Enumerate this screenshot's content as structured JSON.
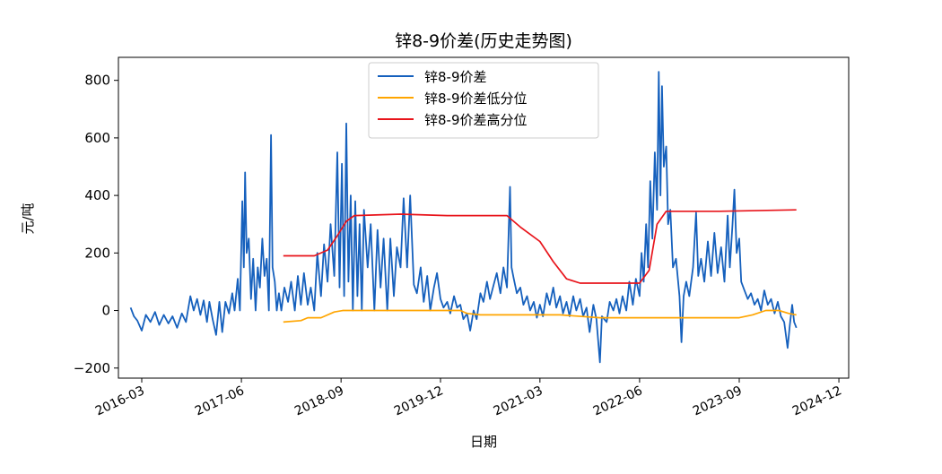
{
  "chart_data": {
    "type": "line",
    "title": "锌8-9价差(历史走势图)",
    "xlabel": "日期",
    "ylabel": "元/吨",
    "ylim": [
      -235,
      880
    ],
    "xlim": [
      "2015-11-15",
      "2025-01-15"
    ],
    "y_ticks": [
      -200,
      0,
      200,
      400,
      600,
      800
    ],
    "x_ticks": [
      "2016-03",
      "2017-06",
      "2018-09",
      "2019-12",
      "2021-03",
      "2022-06",
      "2023-09",
      "2024-12"
    ],
    "legend_position": "upper-center",
    "grid": false,
    "series": [
      {
        "name": "锌8-9价差",
        "color": "#1560BD",
        "points": [
          [
            "2016-01-10",
            10
          ],
          [
            "2016-01-25",
            -20
          ],
          [
            "2016-02-10",
            -35
          ],
          [
            "2016-03-01",
            -70
          ],
          [
            "2016-03-20",
            -15
          ],
          [
            "2016-04-10",
            -40
          ],
          [
            "2016-05-01",
            -5
          ],
          [
            "2016-05-20",
            -50
          ],
          [
            "2016-06-10",
            -15
          ],
          [
            "2016-07-01",
            -45
          ],
          [
            "2016-07-20",
            -20
          ],
          [
            "2016-08-10",
            -60
          ],
          [
            "2016-09-01",
            -10
          ],
          [
            "2016-09-20",
            -40
          ],
          [
            "2016-10-10",
            50
          ],
          [
            "2016-10-25",
            0
          ],
          [
            "2016-11-10",
            40
          ],
          [
            "2016-11-25",
            -15
          ],
          [
            "2016-12-10",
            35
          ],
          [
            "2016-12-25",
            -40
          ],
          [
            "2017-01-05",
            30
          ],
          [
            "2017-01-20",
            -30
          ],
          [
            "2017-02-05",
            -85
          ],
          [
            "2017-02-20",
            30
          ],
          [
            "2017-03-05",
            -75
          ],
          [
            "2017-03-20",
            30
          ],
          [
            "2017-04-05",
            -10
          ],
          [
            "2017-04-20",
            60
          ],
          [
            "2017-05-01",
            0
          ],
          [
            "2017-05-15",
            110
          ],
          [
            "2017-05-25",
            0
          ],
          [
            "2017-06-05",
            380
          ],
          [
            "2017-06-12",
            150
          ],
          [
            "2017-06-18",
            480
          ],
          [
            "2017-06-25",
            200
          ],
          [
            "2017-07-05",
            250
          ],
          [
            "2017-07-15",
            40
          ],
          [
            "2017-07-25",
            180
          ],
          [
            "2017-08-05",
            0
          ],
          [
            "2017-08-15",
            150
          ],
          [
            "2017-08-25",
            80
          ],
          [
            "2017-09-05",
            250
          ],
          [
            "2017-09-15",
            120
          ],
          [
            "2017-09-25",
            180
          ],
          [
            "2017-10-05",
            0
          ],
          [
            "2017-10-15",
            610
          ],
          [
            "2017-10-22",
            150
          ],
          [
            "2017-11-01",
            100
          ],
          [
            "2017-11-10",
            0
          ],
          [
            "2017-11-20",
            60
          ],
          [
            "2017-12-01",
            0
          ],
          [
            "2017-12-15",
            80
          ],
          [
            "2018-01-01",
            30
          ],
          [
            "2018-01-15",
            100
          ],
          [
            "2018-02-01",
            0
          ],
          [
            "2018-02-15",
            120
          ],
          [
            "2018-03-01",
            20
          ],
          [
            "2018-03-15",
            130
          ],
          [
            "2018-04-01",
            20
          ],
          [
            "2018-04-15",
            80
          ],
          [
            "2018-05-01",
            0
          ],
          [
            "2018-05-15",
            200
          ],
          [
            "2018-06-01",
            50
          ],
          [
            "2018-06-15",
            230
          ],
          [
            "2018-07-01",
            100
          ],
          [
            "2018-07-15",
            300
          ],
          [
            "2018-08-01",
            120
          ],
          [
            "2018-08-15",
            550
          ],
          [
            "2018-08-25",
            80
          ],
          [
            "2018-09-05",
            510
          ],
          [
            "2018-09-15",
            50
          ],
          [
            "2018-09-25",
            650
          ],
          [
            "2018-10-05",
            100
          ],
          [
            "2018-10-15",
            400
          ],
          [
            "2018-10-25",
            0
          ],
          [
            "2018-11-05",
            380
          ],
          [
            "2018-11-15",
            50
          ],
          [
            "2018-11-25",
            300
          ],
          [
            "2018-12-05",
            0
          ],
          [
            "2018-12-15",
            350
          ],
          [
            "2019-01-01",
            150
          ],
          [
            "2019-01-15",
            300
          ],
          [
            "2019-02-01",
            0
          ],
          [
            "2019-02-15",
            280
          ],
          [
            "2019-03-01",
            80
          ],
          [
            "2019-03-15",
            250
          ],
          [
            "2019-04-01",
            0
          ],
          [
            "2019-04-15",
            250
          ],
          [
            "2019-05-01",
            50
          ],
          [
            "2019-05-15",
            220
          ],
          [
            "2019-06-01",
            150
          ],
          [
            "2019-06-15",
            390
          ],
          [
            "2019-07-01",
            150
          ],
          [
            "2019-07-15",
            400
          ],
          [
            "2019-08-01",
            90
          ],
          [
            "2019-08-15",
            60
          ],
          [
            "2019-09-01",
            150
          ],
          [
            "2019-09-15",
            30
          ],
          [
            "2019-10-01",
            120
          ],
          [
            "2019-10-15",
            0
          ],
          [
            "2019-11-01",
            80
          ],
          [
            "2019-11-15",
            130
          ],
          [
            "2019-12-01",
            40
          ],
          [
            "2019-12-15",
            10
          ],
          [
            "2020-01-01",
            30
          ],
          [
            "2020-01-15",
            -10
          ],
          [
            "2020-02-01",
            50
          ],
          [
            "2020-02-15",
            10
          ],
          [
            "2020-03-01",
            20
          ],
          [
            "2020-03-15",
            -30
          ],
          [
            "2020-04-01",
            -10
          ],
          [
            "2020-04-15",
            -70
          ],
          [
            "2020-05-01",
            0
          ],
          [
            "2020-05-15",
            -30
          ],
          [
            "2020-06-01",
            60
          ],
          [
            "2020-06-15",
            30
          ],
          [
            "2020-07-01",
            100
          ],
          [
            "2020-07-15",
            40
          ],
          [
            "2020-08-01",
            90
          ],
          [
            "2020-08-15",
            130
          ],
          [
            "2020-09-01",
            60
          ],
          [
            "2020-09-15",
            150
          ],
          [
            "2020-10-01",
            80
          ],
          [
            "2020-10-15",
            430
          ],
          [
            "2020-10-22",
            150
          ],
          [
            "2020-11-01",
            110
          ],
          [
            "2020-11-15",
            60
          ],
          [
            "2020-12-01",
            80
          ],
          [
            "2020-12-15",
            20
          ],
          [
            "2021-01-01",
            50
          ],
          [
            "2021-01-15",
            0
          ],
          [
            "2021-02-01",
            30
          ],
          [
            "2021-02-15",
            -25
          ],
          [
            "2021-03-01",
            20
          ],
          [
            "2021-03-15",
            -20
          ],
          [
            "2021-04-01",
            60
          ],
          [
            "2021-04-15",
            20
          ],
          [
            "2021-05-01",
            80
          ],
          [
            "2021-05-15",
            10
          ],
          [
            "2021-06-01",
            50
          ],
          [
            "2021-06-15",
            -10
          ],
          [
            "2021-07-01",
            30
          ],
          [
            "2021-07-15",
            -20
          ],
          [
            "2021-08-01",
            50
          ],
          [
            "2021-08-15",
            0
          ],
          [
            "2021-09-01",
            40
          ],
          [
            "2021-09-15",
            -20
          ],
          [
            "2021-10-01",
            10
          ],
          [
            "2021-10-15",
            -75
          ],
          [
            "2021-11-01",
            20
          ],
          [
            "2021-11-15",
            -30
          ],
          [
            "2021-12-01",
            -180
          ],
          [
            "2021-12-10",
            -20
          ],
          [
            "2022-01-01",
            -40
          ],
          [
            "2022-01-15",
            30
          ],
          [
            "2022-02-01",
            0
          ],
          [
            "2022-02-15",
            40
          ],
          [
            "2022-03-01",
            -10
          ],
          [
            "2022-03-15",
            50
          ],
          [
            "2022-04-01",
            0
          ],
          [
            "2022-04-15",
            100
          ],
          [
            "2022-05-01",
            20
          ],
          [
            "2022-05-15",
            110
          ],
          [
            "2022-06-01",
            50
          ],
          [
            "2022-06-10",
            200
          ],
          [
            "2022-06-20",
            100
          ],
          [
            "2022-07-01",
            300
          ],
          [
            "2022-07-10",
            150
          ],
          [
            "2022-07-20",
            450
          ],
          [
            "2022-07-30",
            250
          ],
          [
            "2022-08-10",
            550
          ],
          [
            "2022-08-20",
            350
          ],
          [
            "2022-08-28",
            830
          ],
          [
            "2022-09-05",
            400
          ],
          [
            "2022-09-12",
            780
          ],
          [
            "2022-09-20",
            500
          ],
          [
            "2022-10-01",
            570
          ],
          [
            "2022-10-10",
            300
          ],
          [
            "2022-10-20",
            350
          ],
          [
            "2022-11-01",
            150
          ],
          [
            "2022-11-15",
            180
          ],
          [
            "2022-12-01",
            50
          ],
          [
            "2022-12-10",
            -110
          ],
          [
            "2022-12-20",
            50
          ],
          [
            "2023-01-01",
            100
          ],
          [
            "2023-01-15",
            50
          ],
          [
            "2023-02-01",
            150
          ],
          [
            "2023-02-15",
            340
          ],
          [
            "2023-02-25",
            120
          ],
          [
            "2023-03-10",
            180
          ],
          [
            "2023-03-25",
            100
          ],
          [
            "2023-04-10",
            240
          ],
          [
            "2023-04-25",
            120
          ],
          [
            "2023-05-10",
            270
          ],
          [
            "2023-05-25",
            130
          ],
          [
            "2023-06-10",
            220
          ],
          [
            "2023-06-25",
            100
          ],
          [
            "2023-07-10",
            330
          ],
          [
            "2023-07-20",
            150
          ],
          [
            "2023-08-01",
            300
          ],
          [
            "2023-08-10",
            420
          ],
          [
            "2023-08-20",
            200
          ],
          [
            "2023-09-01",
            250
          ],
          [
            "2023-09-10",
            100
          ],
          [
            "2023-09-25",
            70
          ],
          [
            "2023-10-10",
            40
          ],
          [
            "2023-10-25",
            60
          ],
          [
            "2023-11-10",
            20
          ],
          [
            "2023-11-25",
            40
          ],
          [
            "2023-12-10",
            0
          ],
          [
            "2023-12-25",
            70
          ],
          [
            "2024-01-10",
            20
          ],
          [
            "2024-01-25",
            40
          ],
          [
            "2024-02-10",
            -10
          ],
          [
            "2024-02-25",
            30
          ],
          [
            "2024-03-10",
            -20
          ],
          [
            "2024-03-25",
            -40
          ],
          [
            "2024-04-10",
            -130
          ],
          [
            "2024-04-20",
            -50
          ],
          [
            "2024-05-01",
            20
          ],
          [
            "2024-05-10",
            -40
          ],
          [
            "2024-05-20",
            -60
          ]
        ]
      },
      {
        "name": "锌8-9价差低分位",
        "color": "#FFA500",
        "points": [
          [
            "2017-12-10",
            -40
          ],
          [
            "2018-03-01",
            -35
          ],
          [
            "2018-04-01",
            -25
          ],
          [
            "2018-06-01",
            -25
          ],
          [
            "2018-08-01",
            -5
          ],
          [
            "2018-09-10",
            0
          ],
          [
            "2020-03-01",
            0
          ],
          [
            "2020-04-01",
            -10
          ],
          [
            "2020-06-01",
            -15
          ],
          [
            "2021-06-01",
            -15
          ],
          [
            "2021-12-01",
            -25
          ],
          [
            "2022-02-01",
            -25
          ],
          [
            "2022-04-01",
            -25
          ],
          [
            "2022-06-01",
            -25
          ],
          [
            "2023-09-01",
            -25
          ],
          [
            "2023-11-01",
            -15
          ],
          [
            "2024-01-01",
            0
          ],
          [
            "2024-03-01",
            0
          ],
          [
            "2024-04-15",
            -10
          ],
          [
            "2024-05-20",
            -15
          ]
        ]
      },
      {
        "name": "锌8-9价差高分位",
        "color": "#E8141B",
        "points": [
          [
            "2017-12-10",
            190
          ],
          [
            "2018-05-01",
            190
          ],
          [
            "2018-07-01",
            210
          ],
          [
            "2018-08-15",
            260
          ],
          [
            "2018-09-25",
            310
          ],
          [
            "2018-11-01",
            330
          ],
          [
            "2019-06-01",
            335
          ],
          [
            "2020-01-01",
            330
          ],
          [
            "2020-10-01",
            330
          ],
          [
            "2020-12-01",
            290
          ],
          [
            "2021-03-01",
            240
          ],
          [
            "2021-05-01",
            170
          ],
          [
            "2021-07-01",
            110
          ],
          [
            "2021-09-01",
            95
          ],
          [
            "2022-06-01",
            95
          ],
          [
            "2022-07-15",
            140
          ],
          [
            "2022-08-20",
            300
          ],
          [
            "2022-10-01",
            345
          ],
          [
            "2023-06-01",
            345
          ],
          [
            "2024-05-20",
            350
          ]
        ]
      }
    ]
  }
}
